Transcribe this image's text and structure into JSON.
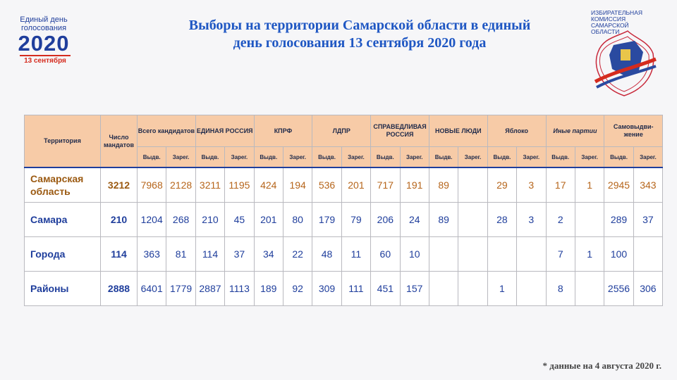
{
  "logo_left": {
    "line1": "Единый день",
    "line2": "голосования",
    "year": "2020",
    "date": "13 сентября"
  },
  "title": {
    "line1": "Выборы на территории Самарской области в единый",
    "line2": "день голосования 13 сентября 2020 года"
  },
  "logo_right": {
    "text": [
      "ИЗБИРАТЕЛЬНАЯ",
      "КОМИССИЯ",
      "САМАРСКОЙ",
      "ОБЛАСТИ"
    ]
  },
  "table": {
    "headers": {
      "territory": "Территория",
      "mandates": "Число мандатов",
      "groups": [
        "Всего кандидатов",
        "ЕДИНАЯ РОССИЯ",
        "КПРФ",
        "ЛДПР",
        "СПРАВЕДЛИВАЯ РОССИЯ",
        "НОВЫЕ ЛЮДИ",
        "Яблоко",
        "Иные партии",
        "Самовыдви-жение"
      ],
      "sub_nominated": "Выдв.",
      "sub_registered": "Зарег."
    },
    "rows": [
      {
        "territory": "Самарская область",
        "mandates": "3212",
        "values": [
          "7968",
          "2128",
          "3211",
          "1195",
          "424",
          "194",
          "536",
          "201",
          "717",
          "191",
          "89",
          "",
          "29",
          "3",
          "17",
          "1",
          "2945",
          "343"
        ]
      },
      {
        "territory": "Самара",
        "mandates": "210",
        "values": [
          "1204",
          "268",
          "210",
          "45",
          "201",
          "80",
          "179",
          "79",
          "206",
          "24",
          "89",
          "",
          "28",
          "3",
          "2",
          "",
          "289",
          "37"
        ]
      },
      {
        "territory": "Города",
        "mandates": "114",
        "values": [
          "363",
          "81",
          "114",
          "37",
          "34",
          "22",
          "48",
          "11",
          "60",
          "10",
          "",
          "",
          "",
          "",
          "7",
          "1",
          "100",
          ""
        ]
      },
      {
        "territory": "Районы",
        "mandates": "2888",
        "values": [
          "6401",
          "1779",
          "2887",
          "1113",
          "189",
          "92",
          "309",
          "111",
          "451",
          "157",
          "",
          "",
          "1",
          "",
          "8",
          "",
          "2556",
          "306"
        ]
      }
    ]
  },
  "footnote": "*  данные на 4 августа 2020 г.",
  "colors": {
    "header_bg": "#f7cba7",
    "blue": "#1f3e9c",
    "title_blue": "#1f57c3",
    "brown": "#9b5a12",
    "red": "#d52b1e"
  }
}
